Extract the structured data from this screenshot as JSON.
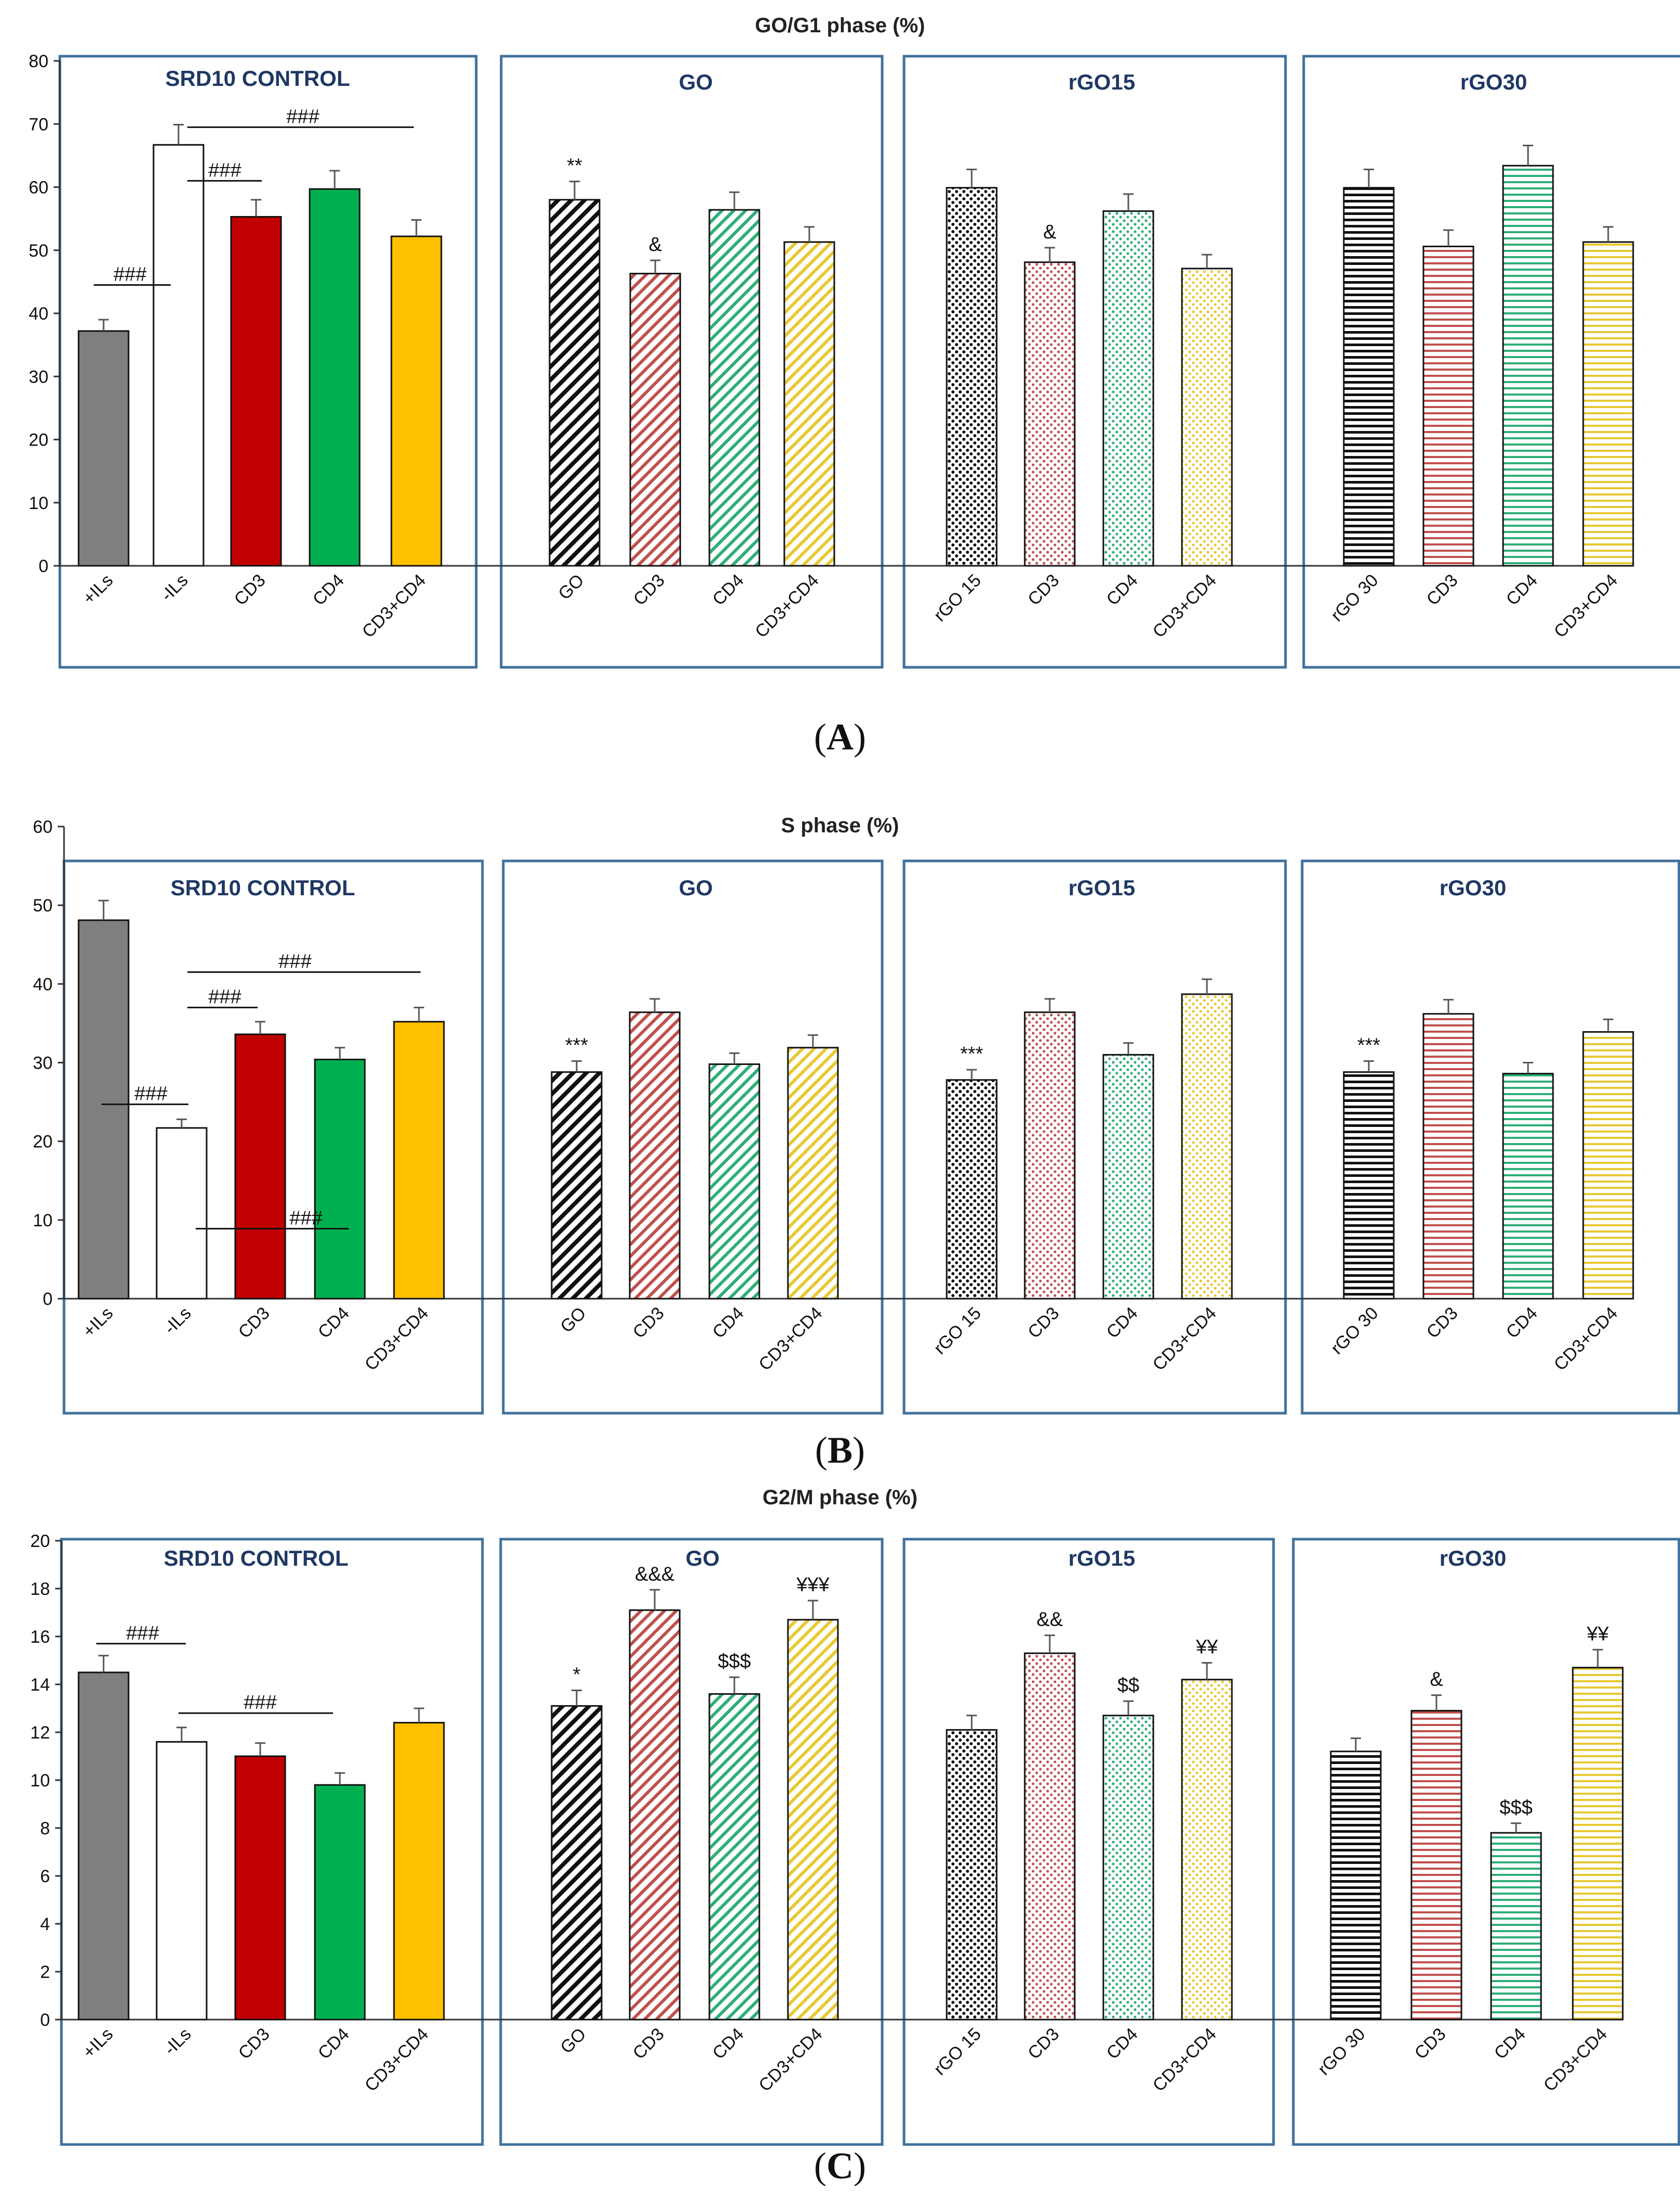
{
  "figure": {
    "panels": [
      {
        "id": "A",
        "label_open": "(",
        "label_letter": "A",
        "label_close": ")",
        "title": "GO/G1 phase (%)",
        "groups": [
          {
            "title": "SRD10 CONTROL",
            "categories": [
              "+ILs",
              "-ILs",
              "CD3",
              "CD4",
              "CD3+CD4"
            ]
          },
          {
            "title": "GO",
            "categories": [
              "GO",
              "CD3",
              "CD4",
              "CD3+CD4"
            ]
          },
          {
            "title": "rGO15",
            "categories": [
              "rGO 15",
              "CD3",
              "CD4",
              "CD3+CD4"
            ]
          },
          {
            "title": "rGO30",
            "categories": [
              "rGO 30",
              "CD3",
              "CD4",
              "CD3+CD4"
            ]
          }
        ]
      },
      {
        "id": "B",
        "label_open": "(",
        "label_letter": "B",
        "label_close": ")",
        "title": "S phase (%)",
        "groups": [
          {
            "title": "SRD10 CONTROL",
            "categories": [
              "+ILs",
              "-ILs",
              "CD3",
              "CD4",
              "CD3+CD4"
            ]
          },
          {
            "title": "GO",
            "categories": [
              "GO",
              "CD3",
              "CD4",
              "CD3+CD4"
            ]
          },
          {
            "title": "rGO15",
            "categories": [
              "rGO 15",
              "CD3",
              "CD4",
              "CD3+CD4"
            ]
          },
          {
            "title": "rGO30",
            "categories": [
              "rGO 30",
              "CD3",
              "CD4",
              "CD3+CD4"
            ]
          }
        ]
      },
      {
        "id": "C",
        "label_open": "(",
        "label_letter": "C",
        "label_close": ")",
        "title": "G2/M phase (%)",
        "groups": [
          {
            "title": "SRD10 CONTROL",
            "categories": [
              "+ILs",
              "-ILs",
              "CD3",
              "CD4",
              "CD3+CD4"
            ]
          },
          {
            "title": "GO",
            "categories": [
              "GO",
              "CD3",
              "CD4",
              "CD3+CD4"
            ]
          },
          {
            "title": "rGO15",
            "categories": [
              "rGO 15",
              "CD3",
              "CD4",
              "CD3+CD4"
            ]
          },
          {
            "title": "rGO30",
            "categories": [
              "rGO 30",
              "CD3",
              "CD4",
              "CD3+CD4"
            ]
          }
        ]
      }
    ]
  },
  "colors": {
    "frame": "#41719c",
    "group_title": "#1f3864",
    "ils_plus": "#7f7f7f",
    "ils_minus": "#ffffff",
    "cd3": "#c00000",
    "cd4": "#00b050",
    "cd3cd4": "#ffc000",
    "go": "#111111",
    "red_light": "#c0504d",
    "green_light": "#2fae78",
    "yellow_light": "#e8c832"
  },
  "chart_data": [
    {
      "type": "bar",
      "title": "GO/G1 phase (%)",
      "ylim": [
        0,
        80
      ],
      "yticks": [
        0,
        10,
        20,
        30,
        40,
        50,
        60,
        70,
        80
      ],
      "series": [
        {
          "name": "SRD10 CONTROL",
          "categories": [
            "+ILs",
            "-ILs",
            "CD3",
            "CD4",
            "CD3+CD4"
          ],
          "values": [
            37.2,
            66.7,
            55.3,
            59.7,
            52.2
          ],
          "errors": [
            1.8,
            3.2,
            2.7,
            2.9,
            2.6
          ],
          "annotations": [
            "",
            "",
            "",
            "",
            ""
          ]
        },
        {
          "name": "GO",
          "categories": [
            "GO",
            "CD3",
            "CD4",
            "CD3+CD4"
          ],
          "values": [
            58.0,
            46.3,
            56.4,
            51.3
          ],
          "errors": [
            2.9,
            2.1,
            2.8,
            2.4
          ],
          "annotations": [
            "**",
            "&",
            "",
            ""
          ]
        },
        {
          "name": "rGO15",
          "categories": [
            "rGO 15",
            "CD3",
            "CD4",
            "CD3+CD4"
          ],
          "values": [
            59.9,
            48.1,
            56.2,
            47.1
          ],
          "errors": [
            2.9,
            2.3,
            2.7,
            2.2
          ],
          "annotations": [
            "",
            "&",
            "",
            ""
          ]
        },
        {
          "name": "rGO30",
          "categories": [
            "rGO 30",
            "CD3",
            "CD4",
            "CD3+CD4"
          ],
          "values": [
            59.9,
            50.6,
            63.4,
            51.3
          ],
          "errors": [
            2.9,
            2.6,
            3.2,
            2.4
          ],
          "annotations": [
            "",
            "",
            "",
            ""
          ]
        }
      ],
      "comparisons": [
        {
          "label": "###",
          "value": 44.5
        },
        {
          "label": "###",
          "value": 61.0
        },
        {
          "label": "###",
          "value": 69.5
        }
      ]
    },
    {
      "type": "bar",
      "title": "S phase (%)",
      "ylim": [
        0,
        60
      ],
      "yticks": [
        0,
        10,
        20,
        30,
        40,
        50,
        60
      ],
      "series": [
        {
          "name": "SRD10 CONTROL",
          "categories": [
            "+ILs",
            "-ILs",
            "CD3",
            "CD4",
            "CD3+CD4"
          ],
          "values": [
            48.1,
            21.7,
            33.6,
            30.4,
            35.2
          ],
          "errors": [
            2.5,
            1.1,
            1.6,
            1.5,
            1.8
          ],
          "annotations": [
            "",
            "",
            "",
            "",
            ""
          ]
        },
        {
          "name": "GO",
          "categories": [
            "GO",
            "CD3",
            "CD4",
            "CD3+CD4"
          ],
          "values": [
            28.8,
            36.4,
            29.8,
            31.9
          ],
          "errors": [
            1.4,
            1.7,
            1.4,
            1.6
          ],
          "annotations": [
            "***",
            "",
            "",
            ""
          ]
        },
        {
          "name": "rGO15",
          "categories": [
            "rGO 15",
            "CD3",
            "CD4",
            "CD3+CD4"
          ],
          "values": [
            27.8,
            36.4,
            31.0,
            38.7
          ],
          "errors": [
            1.3,
            1.7,
            1.5,
            1.9
          ],
          "annotations": [
            "***",
            "",
            "",
            ""
          ]
        },
        {
          "name": "rGO30",
          "categories": [
            "rGO 30",
            "CD3",
            "CD4",
            "CD3+CD4"
          ],
          "values": [
            28.8,
            36.2,
            28.6,
            33.9
          ],
          "errors": [
            1.4,
            1.8,
            1.4,
            1.6
          ],
          "annotations": [
            "***",
            "",
            "",
            ""
          ]
        }
      ],
      "comparisons": [
        {
          "label": "###",
          "value": 24.7
        },
        {
          "label": "###",
          "value": 37.0
        },
        {
          "label": "###",
          "value": 41.5
        },
        {
          "label": "###",
          "value": 8.9
        }
      ]
    },
    {
      "type": "bar",
      "title": "G2/M phase (%)",
      "ylim": [
        0,
        20
      ],
      "yticks": [
        0,
        2,
        4,
        6,
        8,
        10,
        12,
        14,
        16,
        18,
        20
      ],
      "series": [
        {
          "name": "SRD10 CONTROL",
          "categories": [
            "+ILs",
            "-ILs",
            "CD3",
            "CD4",
            "CD3+CD4"
          ],
          "values": [
            14.5,
            11.6,
            11.0,
            9.8,
            12.4
          ],
          "errors": [
            0.7,
            0.6,
            0.55,
            0.5,
            0.6
          ],
          "annotations": [
            "",
            "",
            "",
            "",
            ""
          ]
        },
        {
          "name": "GO",
          "categories": [
            "GO",
            "CD3",
            "CD4",
            "CD3+CD4"
          ],
          "values": [
            13.1,
            17.1,
            13.6,
            16.7
          ],
          "errors": [
            0.65,
            0.85,
            0.7,
            0.8
          ],
          "annotations": [
            "*",
            "&&&",
            "$$$",
            "¥¥¥"
          ]
        },
        {
          "name": "rGO15",
          "categories": [
            "rGO 15",
            "CD3",
            "CD4",
            "CD3+CD4"
          ],
          "values": [
            12.1,
            15.3,
            12.7,
            14.2
          ],
          "errors": [
            0.6,
            0.75,
            0.6,
            0.7
          ],
          "annotations": [
            "",
            "&&",
            "$$",
            "¥¥"
          ]
        },
        {
          "name": "rGO30",
          "categories": [
            "rGO 30",
            "CD3",
            "CD4",
            "CD3+CD4"
          ],
          "values": [
            11.2,
            12.9,
            7.8,
            14.7
          ],
          "errors": [
            0.55,
            0.65,
            0.4,
            0.75
          ],
          "annotations": [
            "",
            "&",
            "$$$",
            "¥¥"
          ]
        }
      ],
      "comparisons": [
        {
          "label": "###",
          "value": 15.7
        },
        {
          "label": "###",
          "value": 12.8
        }
      ]
    }
  ]
}
